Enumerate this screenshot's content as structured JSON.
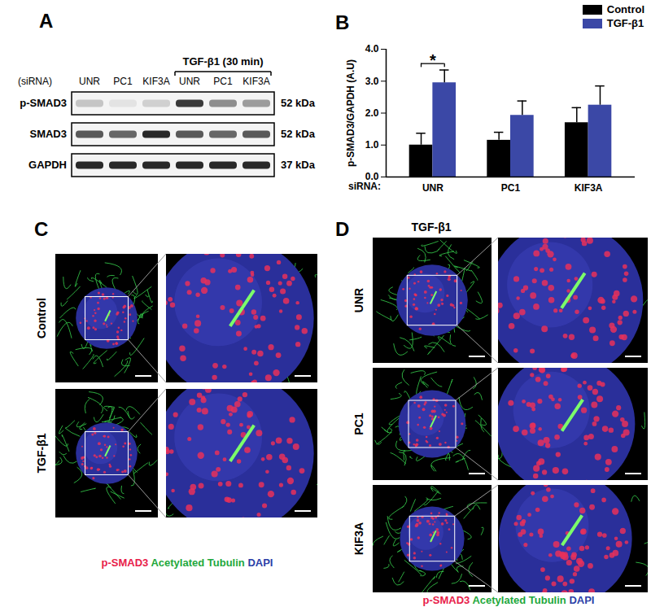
{
  "panels": {
    "A": {
      "label": "A",
      "lane_header": "(siRNA)",
      "lanes": [
        "UNR",
        "PC1",
        "KIF3A",
        "UNR",
        "PC1",
        "KIF3A"
      ],
      "treatment": "TGF-β1 (30 min)",
      "blots": [
        {
          "name": "p-SMAD3",
          "size": "52 kDa",
          "bands": [
            0.35,
            0.2,
            0.3,
            0.85,
            0.55,
            0.5
          ]
        },
        {
          "name": "SMAD3",
          "size": "52 kDa",
          "bands": [
            0.75,
            0.7,
            0.9,
            0.75,
            0.7,
            0.75
          ]
        },
        {
          "name": "GAPDH",
          "size": "37 kDa",
          "bands": [
            0.9,
            0.9,
            0.9,
            0.9,
            0.9,
            0.9
          ]
        }
      ]
    },
    "C": {
      "label": "C",
      "rows": [
        "Control",
        "TGF-β1"
      ],
      "stain_legend": [
        {
          "text": "p-SMAD3",
          "color": "#e8204a"
        },
        {
          "text": "Acetylated Tubulin",
          "color": "#1fa83c"
        },
        {
          "text": "DAPI",
          "color": "#2b3fa8"
        }
      ]
    },
    "D": {
      "label": "D",
      "title": "TGF-β1",
      "rows": [
        "UNR",
        "PC1",
        "KIF3A"
      ],
      "stain_legend": [
        {
          "text": "p-SMAD3",
          "color": "#e8204a"
        },
        {
          "text": "Acetylated Tubulin",
          "color": "#1fa83c"
        },
        {
          "text": "DAPI",
          "color": "#2b3fa8"
        }
      ]
    }
  },
  "chart_data": {
    "type": "bar",
    "panel_label": "B",
    "categories": [
      "UNR",
      "PC1",
      "KIF3A"
    ],
    "x_label": "siRNA:",
    "y_label": "p-SMAD3/GAPDH (A.U)",
    "series": [
      {
        "name": "Control",
        "color": "#000000",
        "values": [
          1.0,
          1.15,
          1.7
        ],
        "errors": [
          0.37,
          0.25,
          0.47
        ]
      },
      {
        "name": "TGF-β1",
        "color": "#3b48a6",
        "values": [
          2.95,
          1.93,
          2.25
        ],
        "errors": [
          0.4,
          0.45,
          0.6
        ]
      }
    ],
    "ylim": [
      0,
      4
    ],
    "yticks": [
      {
        "value": 0,
        "label": "0.0"
      },
      {
        "value": 1,
        "label": "1.0"
      },
      {
        "value": 2,
        "label": "2.0"
      },
      {
        "value": 3,
        "label": "3.0"
      },
      {
        "value": 4,
        "label": "4.0"
      }
    ],
    "legend": "top-right",
    "annotations": [
      {
        "category": "UNR",
        "text": "*",
        "y": 3.55
      }
    ]
  }
}
